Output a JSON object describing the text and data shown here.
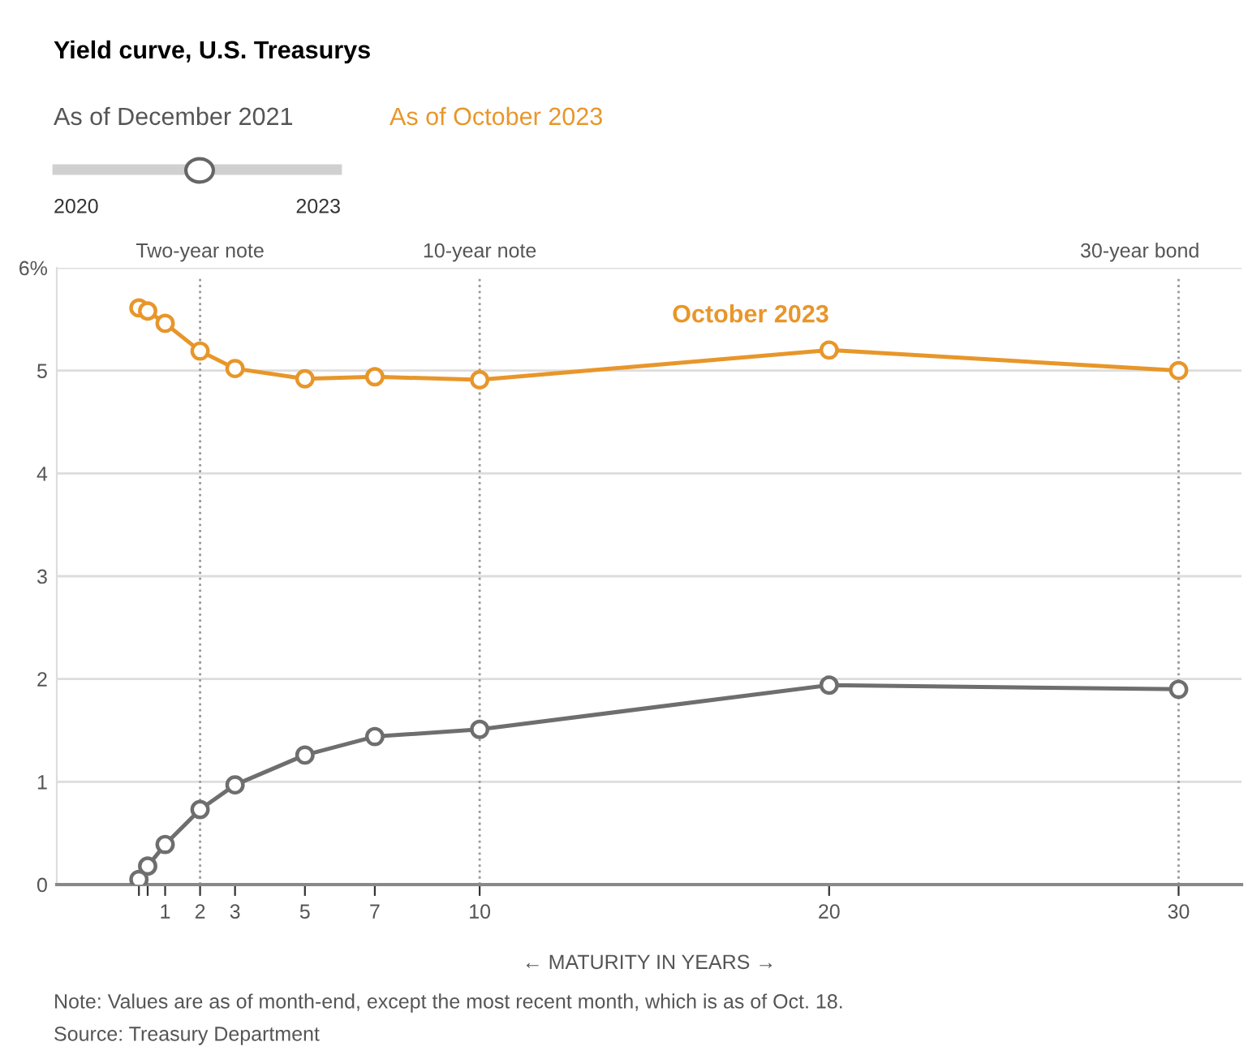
{
  "chart_data": {
    "type": "line",
    "title": "Yield curve, U.S. Treasurys",
    "xlabel": "← MATURITY IN YEARS →",
    "annotations": [
      "As of December 2021",
      "As of October 2023",
      "2020",
      "2023",
      "Note: Values are as of month-end, except the most recent month, which is as of Oct. 18.",
      "Source: Treasury Department"
    ],
    "series": [
      {
        "name": "October 2023",
        "color": "#e8962a",
        "x": [
          0.25,
          0.5,
          1,
          2,
          3,
          5,
          7,
          10,
          20,
          30
        ],
        "values": [
          5.61,
          5.58,
          5.46,
          5.19,
          5.02,
          4.92,
          4.94,
          4.91,
          5.2,
          5.0
        ]
      },
      {
        "color": "#6e6e6e",
        "x": [
          0.25,
          0.5,
          1,
          2,
          3,
          5,
          7,
          10,
          20,
          30
        ],
        "values": [
          0.05,
          0.18,
          0.39,
          0.73,
          0.97,
          1.26,
          1.44,
          1.51,
          1.94,
          1.9
        ]
      }
    ],
    "xlim": [
      -2.1,
      31.8
    ],
    "ylim": [
      0,
      6
    ],
    "xticks": [
      {
        "value": 0.25,
        "label": null
      },
      {
        "value": 0.5,
        "label": null
      },
      1,
      2,
      3,
      5,
      7,
      10,
      20,
      30
    ],
    "yticks": [
      0,
      1,
      2,
      3,
      4,
      5,
      {
        "value": 6,
        "label": "6%"
      }
    ],
    "ref_lines": [
      {
        "axis": "x",
        "value": 2,
        "label": "Two-year note",
        "color": "#999999",
        "line_style": "dotted"
      },
      {
        "axis": "x",
        "value": 10,
        "label": "10-year note",
        "color": "#999999",
        "line_style": "dotted"
      },
      {
        "axis": "x",
        "value": 30,
        "label": "30-year bond",
        "color": "#999999",
        "line_style": "dotted"
      }
    ],
    "grid": "y",
    "marker": "circle",
    "line_style": "solid",
    "legend": false
  }
}
